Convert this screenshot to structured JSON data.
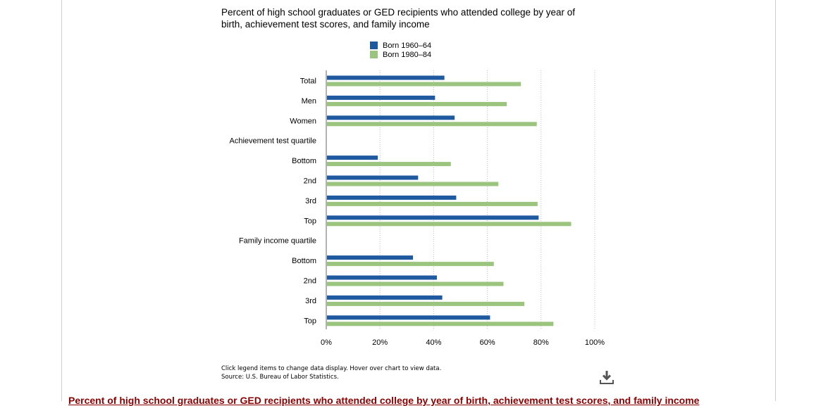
{
  "chart_data": {
    "type": "bar",
    "orientation": "horizontal",
    "title": "Percent of high school graduates or GED recipients who attended college by year of birth, achievement test scores, and family income",
    "categories": [
      "Total",
      "Men",
      "Women",
      "Achievement test quartile",
      "Bottom",
      "2nd",
      "3rd",
      "Top",
      "Family income quartile",
      "Bottom",
      "2nd",
      "3rd",
      "Top"
    ],
    "series": [
      {
        "name": "Born 1960–64",
        "color": "#1f5aa0",
        "values": [
          44,
          40.5,
          47.8,
          null,
          19.2,
          34.2,
          48.4,
          79.1,
          null,
          32.3,
          41.2,
          43.2,
          61
        ]
      },
      {
        "name": "Born 1980–84",
        "color": "#9bc47f",
        "values": [
          72.5,
          67.2,
          78.4,
          null,
          46.4,
          64.1,
          78.7,
          91.2,
          null,
          62.4,
          66,
          73.8,
          84.6
        ]
      }
    ],
    "xlim": [
      0,
      100
    ],
    "xticks": [
      "0%",
      "20%",
      "40%",
      "60%",
      "80%",
      "100%"
    ],
    "grid": true,
    "legend_position": "top"
  },
  "footnote": {
    "line1": "Click legend items to change data display. Hover over chart to view data.",
    "line2": "Source: U.S. Bureau of Labor Statistics."
  },
  "caption": "Percent of high school graduates or GED recipients who attended college by year of birth, achievement test scores, and family income",
  "icons": {
    "download": "download-icon"
  }
}
